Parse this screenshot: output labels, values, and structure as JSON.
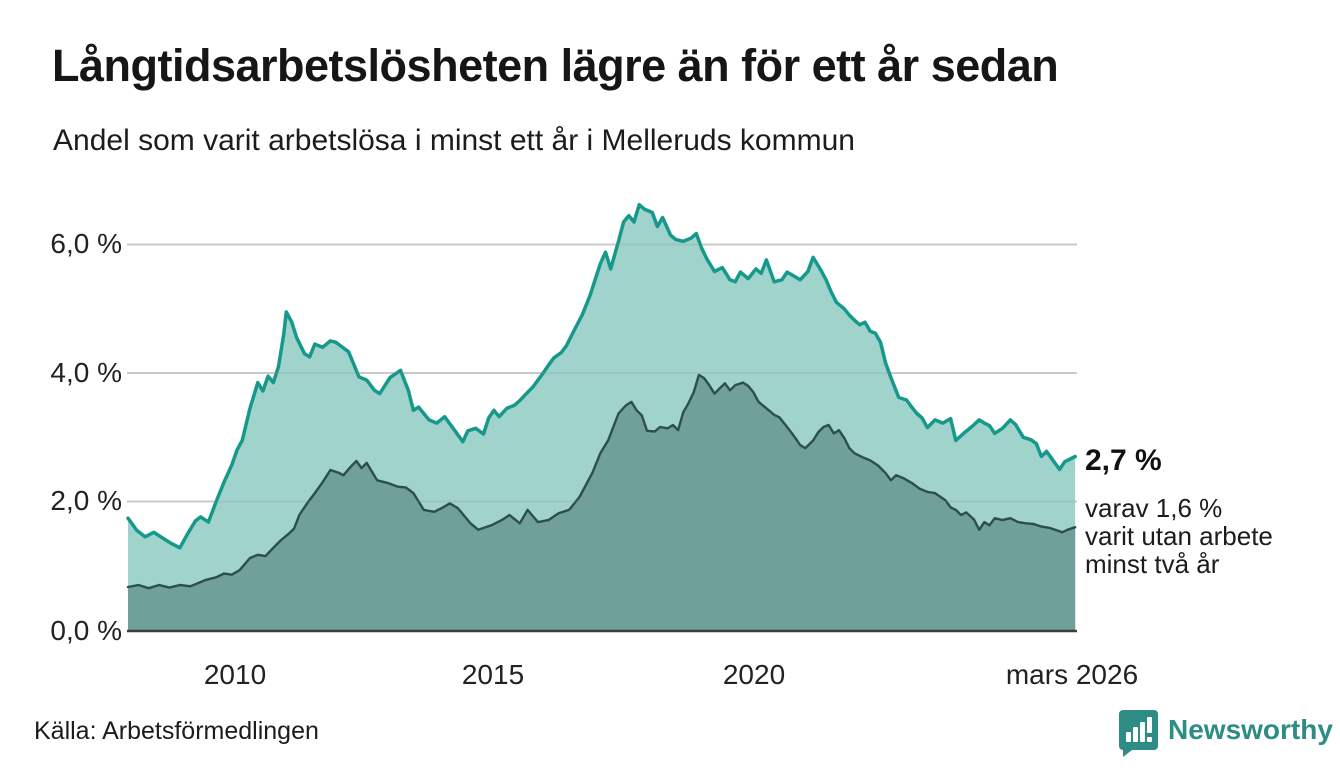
{
  "header": {
    "title": "Långtidsarbetslösheten lägre än för ett år sedan",
    "subtitle": "Andel som varit arbetslösa i minst ett år i Melleruds kommun"
  },
  "chart_data": {
    "type": "area",
    "title": "Långtidsarbetslösheten lägre än för ett år sedan",
    "subtitle": "Andel som varit arbetslösa i minst ett år i Melleruds kommun",
    "unit": "%",
    "grid": true,
    "legend_position": "none",
    "x_range": [
      2008,
      2026.25
    ],
    "y_range": [
      0,
      6.9
    ],
    "x_ticks": [
      {
        "label": "2010",
        "year": 2010
      },
      {
        "label": "2015",
        "year": 2015
      },
      {
        "label": "2020",
        "year": 2020
      },
      {
        "label": "mars 2026",
        "year": 2026.17
      }
    ],
    "y_ticks": [
      {
        "label": "0,0 %",
        "value": 0
      },
      {
        "label": "2,0 %",
        "value": 2
      },
      {
        "label": "4,0 %",
        "value": 4
      },
      {
        "label": "6,0 %",
        "value": 6
      }
    ],
    "series": [
      {
        "name": "Andel som varit arbetslösa minst ett år",
        "line_color": "#16998a",
        "fill_color": "#9fd3cc",
        "end_value_label": "2,7 %",
        "points": [
          [
            2008.0,
            1.74
          ],
          [
            2008.17,
            1.55
          ],
          [
            2008.33,
            1.45
          ],
          [
            2008.5,
            1.52
          ],
          [
            2008.67,
            1.43
          ],
          [
            2008.83,
            1.35
          ],
          [
            2009.0,
            1.28
          ],
          [
            2009.15,
            1.5
          ],
          [
            2009.3,
            1.7
          ],
          [
            2009.4,
            1.76
          ],
          [
            2009.55,
            1.68
          ],
          [
            2009.7,
            2.0
          ],
          [
            2009.85,
            2.3
          ],
          [
            2010.0,
            2.57
          ],
          [
            2010.1,
            2.8
          ],
          [
            2010.2,
            2.95
          ],
          [
            2010.35,
            3.45
          ],
          [
            2010.5,
            3.85
          ],
          [
            2010.6,
            3.72
          ],
          [
            2010.7,
            3.95
          ],
          [
            2010.8,
            3.85
          ],
          [
            2010.9,
            4.1
          ],
          [
            2011.0,
            4.6
          ],
          [
            2011.05,
            4.95
          ],
          [
            2011.15,
            4.8
          ],
          [
            2011.25,
            4.55
          ],
          [
            2011.4,
            4.3
          ],
          [
            2011.5,
            4.25
          ],
          [
            2011.6,
            4.45
          ],
          [
            2011.75,
            4.4
          ],
          [
            2011.9,
            4.5
          ],
          [
            2012.0,
            4.48
          ],
          [
            2012.1,
            4.42
          ],
          [
            2012.25,
            4.33
          ],
          [
            2012.45,
            3.94
          ],
          [
            2012.6,
            3.89
          ],
          [
            2012.75,
            3.73
          ],
          [
            2012.85,
            3.68
          ],
          [
            2013.05,
            3.93
          ],
          [
            2013.25,
            4.04
          ],
          [
            2013.4,
            3.73
          ],
          [
            2013.5,
            3.42
          ],
          [
            2013.6,
            3.47
          ],
          [
            2013.8,
            3.27
          ],
          [
            2013.95,
            3.22
          ],
          [
            2014.1,
            3.32
          ],
          [
            2014.3,
            3.1
          ],
          [
            2014.45,
            2.93
          ],
          [
            2014.55,
            3.1
          ],
          [
            2014.7,
            3.14
          ],
          [
            2014.85,
            3.05
          ],
          [
            2014.95,
            3.3
          ],
          [
            2015.05,
            3.42
          ],
          [
            2015.15,
            3.32
          ],
          [
            2015.3,
            3.45
          ],
          [
            2015.45,
            3.5
          ],
          [
            2015.55,
            3.57
          ],
          [
            2015.7,
            3.7
          ],
          [
            2015.8,
            3.78
          ],
          [
            2015.9,
            3.89
          ],
          [
            2016.0,
            4.0
          ],
          [
            2016.1,
            4.12
          ],
          [
            2016.2,
            4.23
          ],
          [
            2016.35,
            4.32
          ],
          [
            2016.45,
            4.43
          ],
          [
            2016.6,
            4.67
          ],
          [
            2016.75,
            4.9
          ],
          [
            2016.9,
            5.2
          ],
          [
            2017.0,
            5.45
          ],
          [
            2017.1,
            5.7
          ],
          [
            2017.2,
            5.88
          ],
          [
            2017.3,
            5.62
          ],
          [
            2017.45,
            6.05
          ],
          [
            2017.55,
            6.35
          ],
          [
            2017.65,
            6.45
          ],
          [
            2017.75,
            6.35
          ],
          [
            2017.85,
            6.62
          ],
          [
            2017.95,
            6.55
          ],
          [
            2018.1,
            6.5
          ],
          [
            2018.2,
            6.28
          ],
          [
            2018.3,
            6.42
          ],
          [
            2018.45,
            6.15
          ],
          [
            2018.55,
            6.08
          ],
          [
            2018.7,
            6.05
          ],
          [
            2018.85,
            6.1
          ],
          [
            2018.95,
            6.17
          ],
          [
            2019.05,
            5.95
          ],
          [
            2019.15,
            5.78
          ],
          [
            2019.3,
            5.58
          ],
          [
            2019.45,
            5.64
          ],
          [
            2019.6,
            5.45
          ],
          [
            2019.7,
            5.42
          ],
          [
            2019.8,
            5.57
          ],
          [
            2019.95,
            5.47
          ],
          [
            2020.1,
            5.62
          ],
          [
            2020.2,
            5.55
          ],
          [
            2020.3,
            5.76
          ],
          [
            2020.45,
            5.42
          ],
          [
            2020.6,
            5.45
          ],
          [
            2020.7,
            5.57
          ],
          [
            2020.85,
            5.5
          ],
          [
            2020.95,
            5.45
          ],
          [
            2021.1,
            5.58
          ],
          [
            2021.2,
            5.8
          ],
          [
            2021.35,
            5.6
          ],
          [
            2021.45,
            5.45
          ],
          [
            2021.55,
            5.26
          ],
          [
            2021.65,
            5.1
          ],
          [
            2021.8,
            5.0
          ],
          [
            2021.9,
            4.9
          ],
          [
            2022.0,
            4.82
          ],
          [
            2022.1,
            4.75
          ],
          [
            2022.2,
            4.79
          ],
          [
            2022.3,
            4.65
          ],
          [
            2022.4,
            4.62
          ],
          [
            2022.5,
            4.48
          ],
          [
            2022.6,
            4.15
          ],
          [
            2022.7,
            3.93
          ],
          [
            2022.85,
            3.62
          ],
          [
            2023.0,
            3.58
          ],
          [
            2023.1,
            3.47
          ],
          [
            2023.2,
            3.37
          ],
          [
            2023.3,
            3.3
          ],
          [
            2023.4,
            3.15
          ],
          [
            2023.55,
            3.27
          ],
          [
            2023.7,
            3.22
          ],
          [
            2023.85,
            3.29
          ],
          [
            2023.95,
            2.95
          ],
          [
            2024.1,
            3.06
          ],
          [
            2024.25,
            3.16
          ],
          [
            2024.4,
            3.27
          ],
          [
            2024.5,
            3.22
          ],
          [
            2024.6,
            3.18
          ],
          [
            2024.7,
            3.06
          ],
          [
            2024.85,
            3.14
          ],
          [
            2025.0,
            3.27
          ],
          [
            2025.1,
            3.2
          ],
          [
            2025.25,
            3.0
          ],
          [
            2025.4,
            2.96
          ],
          [
            2025.5,
            2.9
          ],
          [
            2025.6,
            2.7
          ],
          [
            2025.7,
            2.78
          ],
          [
            2025.85,
            2.61
          ],
          [
            2025.95,
            2.5
          ],
          [
            2026.05,
            2.62
          ],
          [
            2026.25,
            2.7
          ]
        ]
      },
      {
        "name": "Andel som varit utan arbete minst två år",
        "line_color": "#2e4f49",
        "fill_color": "#6fa09a",
        "end_value_label": "1,6 %",
        "points": [
          [
            2008.0,
            0.67
          ],
          [
            2008.2,
            0.7
          ],
          [
            2008.4,
            0.65
          ],
          [
            2008.6,
            0.7
          ],
          [
            2008.8,
            0.66
          ],
          [
            2009.0,
            0.7
          ],
          [
            2009.2,
            0.68
          ],
          [
            2009.35,
            0.73
          ],
          [
            2009.5,
            0.78
          ],
          [
            2009.7,
            0.82
          ],
          [
            2009.85,
            0.88
          ],
          [
            2010.0,
            0.86
          ],
          [
            2010.15,
            0.93
          ],
          [
            2010.35,
            1.12
          ],
          [
            2010.5,
            1.17
          ],
          [
            2010.65,
            1.15
          ],
          [
            2010.8,
            1.28
          ],
          [
            2010.95,
            1.4
          ],
          [
            2011.1,
            1.5
          ],
          [
            2011.2,
            1.58
          ],
          [
            2011.3,
            1.79
          ],
          [
            2011.45,
            1.97
          ],
          [
            2011.6,
            2.13
          ],
          [
            2011.75,
            2.3
          ],
          [
            2011.9,
            2.49
          ],
          [
            2012.05,
            2.45
          ],
          [
            2012.15,
            2.41
          ],
          [
            2012.3,
            2.55
          ],
          [
            2012.4,
            2.63
          ],
          [
            2012.5,
            2.52
          ],
          [
            2012.6,
            2.6
          ],
          [
            2012.8,
            2.33
          ],
          [
            2013.0,
            2.29
          ],
          [
            2013.2,
            2.23
          ],
          [
            2013.35,
            2.22
          ],
          [
            2013.5,
            2.13
          ],
          [
            2013.7,
            1.87
          ],
          [
            2013.9,
            1.84
          ],
          [
            2014.05,
            1.9
          ],
          [
            2014.2,
            1.97
          ],
          [
            2014.35,
            1.9
          ],
          [
            2014.6,
            1.66
          ],
          [
            2014.75,
            1.56
          ],
          [
            2015.0,
            1.63
          ],
          [
            2015.2,
            1.71
          ],
          [
            2015.35,
            1.79
          ],
          [
            2015.55,
            1.66
          ],
          [
            2015.7,
            1.87
          ],
          [
            2015.9,
            1.68
          ],
          [
            2016.1,
            1.71
          ],
          [
            2016.3,
            1.82
          ],
          [
            2016.5,
            1.87
          ],
          [
            2016.7,
            2.07
          ],
          [
            2016.95,
            2.45
          ],
          [
            2017.1,
            2.75
          ],
          [
            2017.25,
            2.95
          ],
          [
            2017.45,
            3.37
          ],
          [
            2017.6,
            3.5
          ],
          [
            2017.7,
            3.55
          ],
          [
            2017.8,
            3.42
          ],
          [
            2017.9,
            3.34
          ],
          [
            2018.0,
            3.1
          ],
          [
            2018.15,
            3.09
          ],
          [
            2018.25,
            3.16
          ],
          [
            2018.4,
            3.14
          ],
          [
            2018.5,
            3.19
          ],
          [
            2018.6,
            3.11
          ],
          [
            2018.7,
            3.39
          ],
          [
            2018.8,
            3.53
          ],
          [
            2018.9,
            3.7
          ],
          [
            2019.0,
            3.97
          ],
          [
            2019.1,
            3.92
          ],
          [
            2019.2,
            3.81
          ],
          [
            2019.3,
            3.68
          ],
          [
            2019.4,
            3.76
          ],
          [
            2019.5,
            3.84
          ],
          [
            2019.6,
            3.73
          ],
          [
            2019.7,
            3.81
          ],
          [
            2019.85,
            3.85
          ],
          [
            2019.95,
            3.8
          ],
          [
            2020.05,
            3.7
          ],
          [
            2020.15,
            3.55
          ],
          [
            2020.3,
            3.45
          ],
          [
            2020.45,
            3.35
          ],
          [
            2020.55,
            3.31
          ],
          [
            2020.7,
            3.16
          ],
          [
            2020.85,
            3.0
          ],
          [
            2020.95,
            2.88
          ],
          [
            2021.05,
            2.83
          ],
          [
            2021.2,
            2.95
          ],
          [
            2021.3,
            3.08
          ],
          [
            2021.4,
            3.16
          ],
          [
            2021.5,
            3.19
          ],
          [
            2021.6,
            3.06
          ],
          [
            2021.7,
            3.11
          ],
          [
            2021.8,
            2.99
          ],
          [
            2021.9,
            2.83
          ],
          [
            2022.0,
            2.75
          ],
          [
            2022.15,
            2.69
          ],
          [
            2022.3,
            2.64
          ],
          [
            2022.45,
            2.56
          ],
          [
            2022.6,
            2.44
          ],
          [
            2022.7,
            2.33
          ],
          [
            2022.8,
            2.41
          ],
          [
            2022.95,
            2.36
          ],
          [
            2023.1,
            2.29
          ],
          [
            2023.25,
            2.2
          ],
          [
            2023.4,
            2.15
          ],
          [
            2023.55,
            2.13
          ],
          [
            2023.75,
            2.02
          ],
          [
            2023.85,
            1.91
          ],
          [
            2023.95,
            1.87
          ],
          [
            2024.05,
            1.79
          ],
          [
            2024.15,
            1.83
          ],
          [
            2024.3,
            1.72
          ],
          [
            2024.4,
            1.56
          ],
          [
            2024.5,
            1.68
          ],
          [
            2024.6,
            1.63
          ],
          [
            2024.7,
            1.74
          ],
          [
            2024.85,
            1.71
          ],
          [
            2025.0,
            1.74
          ],
          [
            2025.15,
            1.68
          ],
          [
            2025.3,
            1.66
          ],
          [
            2025.45,
            1.65
          ],
          [
            2025.6,
            1.61
          ],
          [
            2025.75,
            1.59
          ],
          [
            2025.9,
            1.55
          ],
          [
            2026.0,
            1.52
          ],
          [
            2026.1,
            1.56
          ],
          [
            2026.25,
            1.6
          ]
        ]
      }
    ],
    "annotation": {
      "value": "2,7 %",
      "lines": [
        "varav 1,6 %",
        "varit utan arbete",
        "minst två år"
      ]
    }
  },
  "footer": {
    "source": "Källa: Arbetsförmedlingen",
    "brand": "Newsworthy"
  },
  "colors": {
    "accent": "#16998a",
    "brand": "#2d8c83",
    "grid": "#d9d9d9",
    "axis": "#3d3d3d"
  }
}
